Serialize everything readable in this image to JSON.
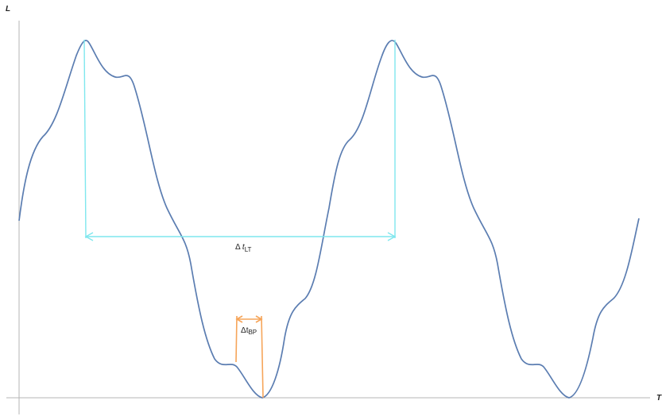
{
  "axes": {
    "y_label": "L",
    "x_label": "T"
  },
  "annotations": {
    "long_term": {
      "prefix": "Δ ",
      "symbol": "t",
      "subscript": "LT"
    },
    "beat_period": {
      "prefix": "Δ",
      "symbol": "t",
      "subscript": "BP"
    }
  },
  "colors": {
    "curve": "#5b7db1",
    "long_term_marker": "#7fe7ee",
    "beat_period_marker": "#f6a55a",
    "axis": "#b4b4b4"
  }
}
